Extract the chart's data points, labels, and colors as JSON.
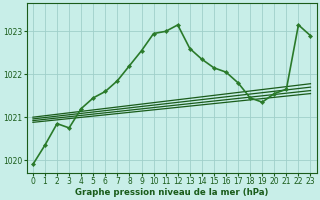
{
  "title": "Graphe pression niveau de la mer (hPa)",
  "bg_color": "#c8eee8",
  "grid_color": "#a0cfca",
  "line_color_dark": "#1a5c1a",
  "xlim": [
    -0.5,
    23.5
  ],
  "ylim": [
    1019.7,
    1023.65
  ],
  "yticks": [
    1020,
    1021,
    1022,
    1023
  ],
  "xticks": [
    0,
    1,
    2,
    3,
    4,
    5,
    6,
    7,
    8,
    9,
    10,
    11,
    12,
    13,
    14,
    15,
    16,
    17,
    18,
    19,
    20,
    21,
    22,
    23
  ],
  "series_main": {
    "x": [
      0,
      1,
      2,
      3,
      4,
      5,
      6,
      7,
      8,
      9,
      10,
      11,
      12,
      13,
      14,
      15,
      16,
      17,
      18,
      19,
      20,
      21,
      22,
      23
    ],
    "y": [
      1019.9,
      1020.35,
      1020.85,
      1020.75,
      1021.2,
      1021.45,
      1021.6,
      1021.85,
      1022.2,
      1022.55,
      1022.95,
      1023.0,
      1023.15,
      1022.6,
      1022.35,
      1022.15,
      1022.05,
      1021.8,
      1021.45,
      1021.35,
      1021.55,
      1021.65,
      1023.15,
      1022.9
    ],
    "color": "#2a7a2a",
    "lw": 1.2,
    "marker": "D",
    "ms": 2.2
  },
  "fan_lines": [
    {
      "x": [
        0,
        23
      ],
      "y": [
        1020.88,
        1021.55
      ],
      "color": "#1a5c1a",
      "lw": 0.9
    },
    {
      "x": [
        0,
        23
      ],
      "y": [
        1020.92,
        1021.62
      ],
      "color": "#1a5c1a",
      "lw": 0.9
    },
    {
      "x": [
        0,
        23
      ],
      "y": [
        1020.96,
        1021.7
      ],
      "color": "#1a5c1a",
      "lw": 0.9
    },
    {
      "x": [
        0,
        23
      ],
      "y": [
        1021.0,
        1021.78
      ],
      "color": "#1a5c1a",
      "lw": 0.9
    }
  ],
  "tick_fontsize": 5.5,
  "xlabel_fontsize": 6.2
}
